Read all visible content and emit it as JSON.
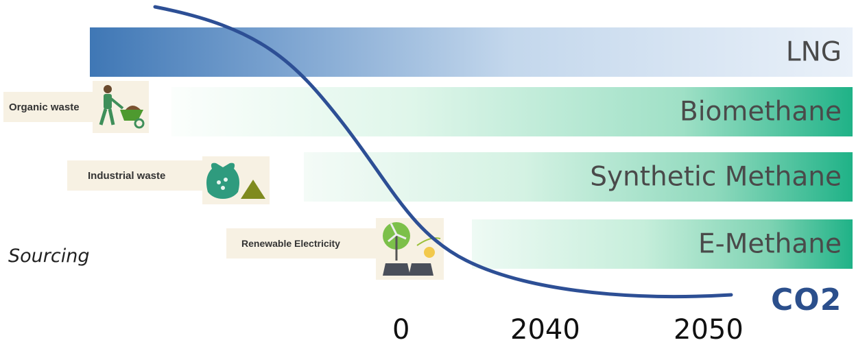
{
  "bands": {
    "lng": "LNG",
    "biomethane": "Biomethane",
    "synthetic": "Synthetic Methane",
    "emethane": "E-Methane"
  },
  "sources": {
    "organic": "Organic waste",
    "industrial": "Industrial waste",
    "renewable": "Renewable Electricity"
  },
  "sourcing_label": "Sourcing",
  "co2_label": "CO2",
  "timeline": [
    "0",
    "2040",
    "2050"
  ],
  "icons": [
    "farmer-wheelbarrow-icon",
    "waste-bag-icon",
    "wind-solar-icon"
  ],
  "colors": {
    "curve": "#2d4f95",
    "lng": "#3f77b5",
    "green": "#1fb287"
  }
}
